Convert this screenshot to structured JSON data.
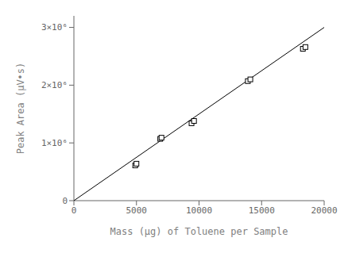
{
  "chart_data": {
    "type": "scatter",
    "xlabel": "Mass (μg) of Toluene per Sample",
    "ylabel": "Peak Area (μV•s)",
    "series": [
      {
        "type": "line",
        "x": [
          0,
          20000
        ],
        "values": [
          0,
          3000000
        ],
        "color": "black"
      },
      {
        "type": "scatter",
        "x": [
          4900,
          5000,
          6900,
          7000,
          9400,
          9600,
          13900,
          14100,
          18300,
          18500
        ],
        "values": [
          610000,
          640000,
          1070000,
          1090000,
          1340000,
          1380000,
          2070000,
          2100000,
          2630000,
          2660000
        ],
        "color": "black",
        "marker": "square"
      }
    ],
    "xlim": [
      0,
      20000
    ],
    "ylim": [
      0,
      3200000
    ],
    "xticks": [
      0,
      5000,
      10000,
      15000,
      20000
    ],
    "yticks": [
      0,
      {
        "value": 1000000,
        "label": "1×10⁶"
      },
      {
        "value": 2000000,
        "label": "2×10⁶"
      },
      {
        "value": 3000000,
        "label": "3×10⁶"
      }
    ]
  }
}
